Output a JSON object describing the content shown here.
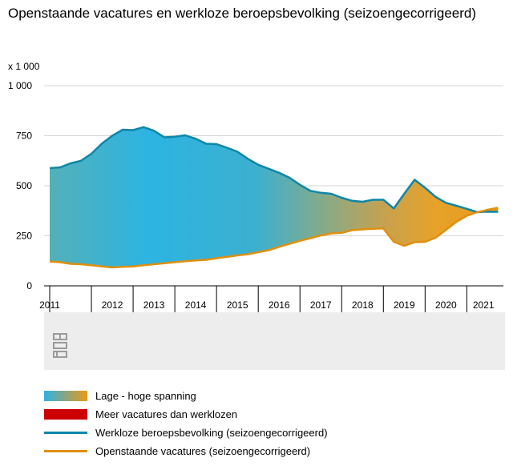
{
  "chart_data": {
    "type": "area",
    "title": "Openstaande vacatures en werkloze beroepsbevolking (seizoengecorrigeerd)",
    "unit_label": "x 1 000",
    "ylim": [
      0,
      1000
    ],
    "yticks": [
      0,
      250,
      500,
      750,
      1000
    ],
    "ytick_labels": [
      "0",
      "250",
      "500",
      "750",
      "1 000"
    ],
    "xlim": [
      2011.0,
      2021.8
    ],
    "year_ticks": [
      2011,
      2012,
      2013,
      2014,
      2015,
      2016,
      2017,
      2018,
      2019,
      2020,
      2021
    ],
    "year_labels": [
      "2011",
      "2012",
      "2013",
      "2014",
      "2015",
      "2016",
      "2017",
      "2018",
      "2019",
      "2020",
      "2021"
    ],
    "grid": true,
    "legend_position": "bottom",
    "series": [
      {
        "name": "Werkloze beroepsbevolking (seizoengecorrigeerd)",
        "color": "#0e86a8",
        "x": [
          2011.0,
          2011.25,
          2011.5,
          2011.75,
          2012.0,
          2012.25,
          2012.5,
          2012.75,
          2013.0,
          2013.25,
          2013.5,
          2013.75,
          2014.0,
          2014.25,
          2014.5,
          2014.75,
          2015.0,
          2015.25,
          2015.5,
          2015.75,
          2016.0,
          2016.25,
          2016.5,
          2016.75,
          2017.0,
          2017.25,
          2017.5,
          2017.75,
          2018.0,
          2018.25,
          2018.5,
          2018.75,
          2019.0,
          2019.25,
          2019.5,
          2019.75,
          2020.0,
          2020.25,
          2020.5,
          2020.75,
          2021.0,
          2021.25,
          2021.4,
          2021.5,
          2021.75
        ],
        "values": [
          588,
          592,
          612,
          625,
          660,
          710,
          750,
          780,
          778,
          793,
          775,
          742,
          745,
          752,
          735,
          710,
          708,
          690,
          670,
          635,
          605,
          585,
          565,
          540,
          505,
          475,
          465,
          460,
          440,
          425,
          420,
          430,
          430,
          387,
          460,
          530,
          490,
          445,
          415,
          400,
          385,
          368,
          370,
          370,
          370
        ]
      },
      {
        "name": "Openstaande vacatures (seizoengecorrigeerd)",
        "color": "#e08f0f",
        "x": [
          2011.0,
          2011.25,
          2011.5,
          2011.75,
          2012.0,
          2012.25,
          2012.5,
          2012.75,
          2013.0,
          2013.25,
          2013.5,
          2013.75,
          2014.0,
          2014.25,
          2014.5,
          2014.75,
          2015.0,
          2015.25,
          2015.5,
          2015.75,
          2016.0,
          2016.25,
          2016.5,
          2016.75,
          2017.0,
          2017.25,
          2017.5,
          2017.75,
          2018.0,
          2018.25,
          2018.5,
          2018.75,
          2019.0,
          2019.25,
          2019.5,
          2019.75,
          2020.0,
          2020.25,
          2020.5,
          2020.75,
          2021.0,
          2021.25,
          2021.4,
          2021.5,
          2021.75
        ],
        "values": [
          122,
          118,
          110,
          108,
          103,
          97,
          92,
          95,
          97,
          103,
          108,
          113,
          118,
          123,
          127,
          130,
          138,
          145,
          152,
          158,
          168,
          178,
          195,
          210,
          225,
          238,
          252,
          262,
          265,
          278,
          282,
          285,
          287,
          220,
          200,
          218,
          220,
          240,
          280,
          320,
          350,
          368,
          375,
          380,
          390
        ]
      }
    ],
    "legend": [
      {
        "label": "Lage - hoge spanning",
        "kind": "gradient",
        "colors": [
          "#2fb2e2",
          "#e89a1a"
        ]
      },
      {
        "label": "Meer vacatures dan werklozen",
        "kind": "fill",
        "color": "#cc0000"
      },
      {
        "label": "Werkloze beroepsbevolking (seizoengecorrigeerd)",
        "kind": "line",
        "color": "#0e86a8"
      },
      {
        "label": "Openstaande vacatures (seizoengecorrigeerd)",
        "kind": "line",
        "color": "#e08f0f"
      }
    ],
    "logo": "cbs"
  }
}
